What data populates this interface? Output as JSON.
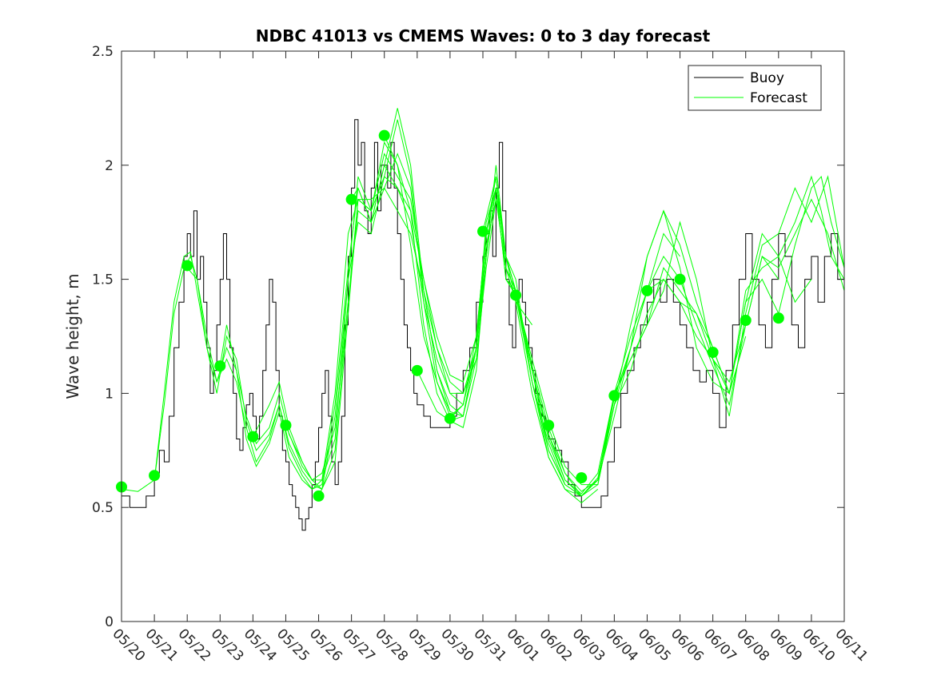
{
  "chart_data": {
    "type": "line",
    "title": "NDBC 41013 vs CMEMS Waves: 0 to 3 day forecast",
    "xlabel": "",
    "ylabel": "Wave height, m",
    "xlim": [
      "05/20",
      "06/11"
    ],
    "ylim": [
      0,
      2.5
    ],
    "x_ticks": [
      "05/20",
      "05/21",
      "05/22",
      "05/23",
      "05/24",
      "05/25",
      "05/26",
      "05/27",
      "05/28",
      "05/29",
      "05/30",
      "05/31",
      "06/01",
      "06/02",
      "06/03",
      "06/04",
      "06/05",
      "06/06",
      "06/07",
      "06/08",
      "06/09",
      "06/10",
      "06/11"
    ],
    "y_ticks": [
      0,
      0.5,
      1,
      1.5,
      2,
      2.5
    ],
    "legend": {
      "position": "top-right",
      "entries": [
        "Buoy",
        "Forecast"
      ]
    },
    "colors": {
      "buoy": "#000000",
      "forecast": "#00ff00",
      "axes": "#262626"
    },
    "series": [
      {
        "name": "Buoy",
        "x": [
          0,
          0.25,
          0.5,
          0.75,
          1,
          1.15,
          1.3,
          1.45,
          1.6,
          1.75,
          1.9,
          2.0,
          2.1,
          2.2,
          2.3,
          2.4,
          2.5,
          2.6,
          2.7,
          2.8,
          2.9,
          3.0,
          3.1,
          3.2,
          3.3,
          3.4,
          3.5,
          3.6,
          3.7,
          3.8,
          3.9,
          4.0,
          4.1,
          4.2,
          4.3,
          4.4,
          4.5,
          4.6,
          4.7,
          4.8,
          4.9,
          5.0,
          5.1,
          5.2,
          5.3,
          5.4,
          5.5,
          5.6,
          5.7,
          5.8,
          5.9,
          6.0,
          6.1,
          6.2,
          6.3,
          6.4,
          6.5,
          6.6,
          6.7,
          6.8,
          6.9,
          7.0,
          7.1,
          7.2,
          7.3,
          7.4,
          7.5,
          7.6,
          7.7,
          7.8,
          7.9,
          8.0,
          8.1,
          8.2,
          8.3,
          8.4,
          8.5,
          8.6,
          8.7,
          8.8,
          8.9,
          9.0,
          9.2,
          9.4,
          9.6,
          9.8,
          10.0,
          10.2,
          10.4,
          10.6,
          10.8,
          11.0,
          11.1,
          11.2,
          11.3,
          11.4,
          11.5,
          11.6,
          11.7,
          11.8,
          11.9,
          12.0,
          12.1,
          12.2,
          12.3,
          12.4,
          12.5,
          12.6,
          12.7,
          12.8,
          12.9,
          13.0,
          13.2,
          13.4,
          13.6,
          13.8,
          14.0,
          14.2,
          14.4,
          14.6,
          14.8,
          15.0,
          15.2,
          15.4,
          15.6,
          15.8,
          16.0,
          16.2,
          16.4,
          16.6,
          16.8,
          17.0,
          17.2,
          17.4,
          17.6,
          17.8,
          18.0,
          18.2,
          18.4,
          18.6,
          18.8,
          19.0,
          19.2,
          19.4,
          19.6,
          19.8,
          20.0,
          20.2,
          20.4,
          20.6,
          20.8,
          21.0,
          21.2,
          21.4,
          21.6,
          21.8,
          22.0
        ],
        "values": [
          0.55,
          0.5,
          0.5,
          0.55,
          0.65,
          0.75,
          0.7,
          0.9,
          1.2,
          1.4,
          1.6,
          1.7,
          1.6,
          1.8,
          1.5,
          1.6,
          1.4,
          1.2,
          1.0,
          1.1,
          1.3,
          1.5,
          1.7,
          1.5,
          1.2,
          1.0,
          0.8,
          0.75,
          0.85,
          0.95,
          1.0,
          0.9,
          0.8,
          0.9,
          1.1,
          1.3,
          1.5,
          1.4,
          1.1,
          0.9,
          0.75,
          0.7,
          0.6,
          0.55,
          0.5,
          0.45,
          0.4,
          0.45,
          0.5,
          0.6,
          0.7,
          0.85,
          1.0,
          1.1,
          0.9,
          0.7,
          0.6,
          0.7,
          0.9,
          1.3,
          1.6,
          1.9,
          2.2,
          2.0,
          2.1,
          1.8,
          1.7,
          1.9,
          2.1,
          1.8,
          2.0,
          2.0,
          1.9,
          2.1,
          1.9,
          1.7,
          1.5,
          1.3,
          1.2,
          1.1,
          1.0,
          0.95,
          0.9,
          0.85,
          0.85,
          0.85,
          0.9,
          1.0,
          1.1,
          1.2,
          1.4,
          1.6,
          1.7,
          1.8,
          1.6,
          1.9,
          2.1,
          1.8,
          1.5,
          1.3,
          1.2,
          1.4,
          1.5,
          1.4,
          1.3,
          1.2,
          1.1,
          1.0,
          0.95,
          0.9,
          0.85,
          0.8,
          0.75,
          0.7,
          0.6,
          0.55,
          0.5,
          0.5,
          0.5,
          0.55,
          0.7,
          0.85,
          1.0,
          1.1,
          1.2,
          1.3,
          1.4,
          1.5,
          1.4,
          1.5,
          1.4,
          1.3,
          1.2,
          1.1,
          1.05,
          1.1,
          1.0,
          0.85,
          1.1,
          1.3,
          1.5,
          1.7,
          1.5,
          1.3,
          1.2,
          1.5,
          1.7,
          1.6,
          1.3,
          1.2,
          1.5,
          1.6,
          1.4,
          1.6,
          1.7,
          1.5,
          1.5
        ]
      },
      {
        "name": "Forecast",
        "x": [
          0,
          0.5,
          1,
          1.3,
          1.6,
          1.9,
          2.1,
          2.3,
          2.6,
          2.9,
          3.2,
          3.5,
          3.8,
          4.1,
          4.5,
          4.8,
          5.1,
          5.5,
          5.8,
          6.1,
          6.5,
          6.9,
          7.2,
          7.6,
          8.0,
          8.4,
          8.8,
          9.2,
          9.6,
          10.0
        ],
        "values": [
          0.58,
          0.57,
          0.62,
          0.95,
          1.35,
          1.55,
          1.6,
          1.5,
          1.25,
          1.05,
          1.2,
          1.1,
          0.9,
          0.78,
          0.85,
          1.0,
          0.82,
          0.7,
          0.62,
          0.58,
          0.75,
          1.4,
          1.85,
          1.85,
          1.9,
          2.05,
          1.9,
          1.45,
          1.1,
          0.92
        ]
      },
      {
        "name": "Forecast",
        "x": [
          1,
          1.3,
          1.6,
          1.9,
          2.1,
          2.3,
          2.6,
          2.9,
          3.2,
          3.5,
          3.8,
          4.1,
          4.5,
          4.8,
          5.1,
          5.5,
          5.8,
          6.1,
          6.5,
          6.9,
          7.2,
          7.6,
          8.0,
          8.4,
          8.8,
          9.2,
          9.6,
          10.0,
          10.4,
          10.8,
          11.0
        ],
        "values": [
          0.62,
          1.0,
          1.4,
          1.6,
          1.62,
          1.45,
          1.2,
          1.0,
          1.25,
          1.15,
          0.88,
          0.75,
          0.82,
          0.95,
          0.78,
          0.66,
          0.6,
          0.58,
          0.9,
          1.5,
          1.95,
          1.8,
          1.95,
          2.2,
          1.95,
          1.4,
          1.05,
          0.9,
          0.95,
          1.2,
          1.5
        ]
      },
      {
        "name": "Forecast",
        "x": [
          2,
          2.3,
          2.6,
          2.9,
          3.2,
          3.5,
          3.8,
          4.1,
          4.5,
          4.8,
          5.1,
          5.5,
          5.8,
          6.1,
          6.5,
          6.9,
          7.2,
          7.6,
          8.0,
          8.4,
          8.8,
          9.2,
          9.6,
          10.0,
          10.4,
          10.8,
          11.1,
          11.4,
          11.7,
          12.0,
          12.5
        ],
        "values": [
          1.55,
          1.5,
          1.2,
          1.05,
          1.15,
          1.05,
          0.85,
          0.7,
          0.8,
          0.95,
          0.76,
          0.64,
          0.58,
          0.6,
          0.95,
          1.55,
          1.9,
          1.75,
          2.0,
          2.25,
          2.0,
          1.45,
          1.1,
          0.95,
          0.9,
          1.2,
          1.75,
          1.9,
          1.6,
          1.4,
          1.3
        ]
      },
      {
        "name": "Forecast",
        "x": [
          3,
          3.2,
          3.5,
          3.8,
          4.1,
          4.5,
          4.8,
          5.1,
          5.5,
          5.8,
          6.1,
          6.5,
          6.9,
          7.2,
          7.6,
          8.0,
          8.4,
          8.8,
          9.2,
          9.6,
          10.0,
          10.4,
          10.8,
          11.1,
          11.4,
          11.7,
          12.0,
          12.5,
          13.0,
          13.5
        ],
        "values": [
          1.12,
          1.3,
          1.1,
          0.8,
          0.68,
          0.78,
          0.92,
          0.72,
          0.62,
          0.58,
          0.62,
          1.0,
          1.7,
          1.85,
          1.8,
          2.1,
          2.0,
          1.8,
          1.3,
          1.0,
          0.88,
          0.85,
          1.1,
          1.6,
          2.0,
          1.6,
          1.45,
          1.1,
          0.75,
          0.6
        ]
      },
      {
        "name": "Forecast",
        "x": [
          4,
          4.5,
          4.8,
          5.1,
          5.5,
          5.8,
          6.1,
          6.5,
          6.9,
          7.2,
          7.6,
          8.0,
          8.4,
          8.8,
          9.2,
          9.6,
          10.0,
          10.4,
          10.8,
          11.1,
          11.4,
          11.7,
          12.0,
          12.5,
          13.0,
          13.5,
          14.0,
          14.5
        ],
        "values": [
          0.81,
          0.95,
          1.05,
          0.85,
          0.7,
          0.62,
          0.62,
          0.8,
          1.5,
          1.75,
          1.7,
          1.95,
          1.9,
          1.75,
          1.4,
          1.15,
          1.0,
          1.0,
          1.2,
          1.6,
          1.9,
          1.6,
          1.5,
          1.05,
          0.72,
          0.58,
          0.52,
          0.58
        ]
      },
      {
        "name": "Forecast",
        "x": [
          5,
          5.5,
          5.8,
          6.1,
          6.5,
          6.9,
          7.2,
          7.6,
          8.0,
          8.4,
          8.8,
          9.2,
          9.6,
          10.0,
          10.4,
          10.8,
          11.1,
          11.4,
          11.7,
          12.0,
          12.5,
          13.0,
          13.5,
          14.0,
          14.5,
          15.0,
          15.5,
          16.0,
          16.5,
          17.0
        ],
        "values": [
          0.86,
          0.68,
          0.62,
          0.65,
          0.85,
          1.4,
          1.8,
          1.75,
          1.9,
          1.8,
          1.7,
          1.45,
          1.2,
          1.05,
          1.0,
          1.15,
          1.55,
          1.85,
          1.55,
          1.45,
          1.1,
          0.8,
          0.62,
          0.55,
          0.62,
          0.9,
          1.2,
          1.45,
          1.7,
          1.6
        ]
      },
      {
        "name": "Forecast",
        "x": [
          6,
          6.5,
          6.9,
          7.2,
          7.6,
          8.0,
          8.4,
          8.8,
          9.2,
          9.6,
          10.0,
          10.4,
          10.8,
          11.1,
          11.4,
          11.7,
          12.0,
          12.5,
          13.0,
          13.5,
          14.0,
          14.5,
          15.0,
          15.5,
          16.0,
          16.5,
          17.0,
          17.5,
          18.0,
          18.5,
          19.0
        ],
        "values": [
          0.55,
          0.7,
          1.35,
          1.85,
          1.8,
          2.05,
          1.95,
          1.85,
          1.5,
          1.25,
          1.08,
          1.05,
          1.25,
          1.7,
          1.95,
          1.6,
          1.45,
          1.1,
          0.82,
          0.65,
          0.55,
          0.6,
          0.95,
          1.3,
          1.6,
          1.8,
          1.65,
          1.4,
          1.2,
          1.0,
          1.25
        ]
      },
      {
        "name": "Forecast",
        "x": [
          7,
          7.2,
          7.6,
          8.0,
          8.4,
          8.8,
          9.2,
          9.6,
          10.0,
          10.4,
          10.8,
          11.1,
          11.4,
          11.7,
          12.0,
          12.5,
          13.0,
          13.5,
          14.0,
          14.5,
          15.0,
          15.5,
          16.0,
          16.5,
          17.0,
          17.5,
          18.0,
          18.5,
          19.0,
          19.5,
          20.0
        ],
        "values": [
          1.85,
          1.9,
          1.75,
          2.0,
          1.9,
          1.8,
          1.5,
          1.2,
          1.0,
          0.95,
          1.2,
          1.7,
          1.9,
          1.5,
          1.45,
          1.05,
          0.75,
          0.6,
          0.55,
          0.62,
          1.0,
          1.25,
          1.45,
          1.5,
          1.4,
          1.25,
          1.15,
          1.05,
          1.3,
          1.6,
          1.5
        ]
      },
      {
        "name": "Forecast",
        "x": [
          8,
          8.4,
          8.8,
          9.2,
          9.6,
          10.0,
          10.4,
          10.8,
          11.1,
          11.4,
          11.7,
          12.0,
          12.5,
          13.0,
          13.5,
          14.0,
          14.5,
          15.0,
          15.5,
          16.0,
          16.5,
          17.0,
          17.5,
          18.0,
          18.5,
          19.0,
          19.5,
          20.0,
          20.5,
          21.0
        ],
        "values": [
          2.13,
          2.0,
          1.65,
          1.25,
          1.05,
          0.92,
          0.9,
          1.2,
          1.65,
          1.85,
          1.55,
          1.4,
          1.0,
          0.72,
          0.58,
          0.55,
          0.62,
          1.0,
          1.15,
          1.3,
          1.55,
          1.45,
          1.35,
          1.15,
          1.0,
          1.4,
          1.7,
          1.6,
          1.4,
          1.5
        ]
      },
      {
        "name": "Forecast",
        "x": [
          9,
          9.6,
          10.0,
          10.4,
          10.8,
          11.1,
          11.4,
          11.7,
          12.0,
          12.5,
          13.0,
          13.5,
          14.0,
          14.5,
          15.0,
          15.5,
          16.0,
          16.5,
          17.0,
          17.5,
          18.0,
          18.5,
          19.0,
          19.5,
          20.0,
          20.5,
          21.0,
          21.5,
          22.0
        ],
        "values": [
          1.1,
          0.92,
          0.88,
          0.9,
          1.15,
          1.6,
          1.9,
          1.5,
          1.43,
          1.05,
          0.78,
          0.6,
          0.55,
          0.63,
          0.95,
          1.2,
          1.45,
          1.6,
          1.5,
          1.3,
          1.12,
          0.95,
          1.3,
          1.6,
          1.55,
          1.7,
          1.85,
          1.7,
          1.45
        ]
      },
      {
        "name": "Forecast",
        "x": [
          10,
          10.4,
          10.8,
          11.1,
          11.4,
          11.7,
          12.0,
          12.5,
          13.0,
          13.5,
          14.0,
          14.5,
          15.0,
          15.5,
          16.0,
          16.5,
          17.0,
          17.5,
          18.0,
          18.5,
          19.0,
          19.5,
          20.0,
          20.5,
          21.0,
          21.5,
          22.0
        ],
        "values": [
          0.89,
          0.95,
          1.25,
          1.7,
          1.95,
          1.55,
          1.45,
          1.1,
          0.82,
          0.62,
          0.56,
          0.65,
          1.0,
          1.15,
          1.3,
          1.45,
          1.75,
          1.5,
          1.15,
          0.9,
          1.35,
          1.65,
          1.7,
          1.9,
          1.75,
          1.95,
          1.55
        ]
      },
      {
        "name": "Forecast",
        "x": [
          11,
          11.4,
          11.7,
          12.0,
          12.5,
          13.0,
          13.5,
          14.0,
          14.5,
          15.0,
          15.5,
          16.0,
          16.5,
          17.0,
          17.5,
          18.0,
          18.5,
          19.0,
          19.5,
          20.0,
          20.5,
          21.0,
          21.3,
          21.6,
          22.0
        ],
        "values": [
          1.71,
          1.95,
          1.6,
          1.45,
          1.12,
          0.85,
          0.65,
          0.57,
          0.62,
          0.98,
          1.2,
          1.6,
          1.8,
          1.55,
          1.2,
          1.05,
          1.0,
          1.45,
          1.55,
          1.6,
          1.75,
          1.95,
          1.8,
          1.6,
          1.5
        ]
      },
      {
        "name": "Forecast",
        "x": [
          12,
          12.5,
          13.0,
          13.5,
          14.0,
          14.5,
          15.0,
          15.5,
          16.0,
          16.5,
          17.0,
          17.5,
          18.0,
          18.5,
          19.0,
          19.5,
          20.0,
          20.5,
          21.0,
          21.3,
          21.6,
          22.0
        ],
        "values": [
          1.43,
          1.15,
          0.88,
          0.68,
          0.6,
          0.6,
          0.95,
          1.1,
          1.35,
          1.5,
          1.4,
          1.35,
          1.2,
          1.0,
          1.4,
          1.5,
          1.35,
          1.65,
          1.9,
          1.95,
          1.75,
          1.55
        ]
      }
    ],
    "markers": {
      "name": "Forecast",
      "x": [
        0,
        1,
        2,
        3,
        4,
        5,
        6,
        7,
        8,
        9,
        10,
        11,
        12,
        13,
        14,
        15,
        16,
        17,
        18,
        19,
        20
      ],
      "values": [
        0.59,
        0.64,
        1.56,
        1.12,
        0.81,
        0.86,
        0.55,
        1.85,
        2.13,
        1.1,
        0.89,
        1.71,
        1.43,
        0.86,
        0.63,
        0.99,
        1.45,
        1.5,
        1.18,
        1.32,
        1.33
      ]
    }
  }
}
